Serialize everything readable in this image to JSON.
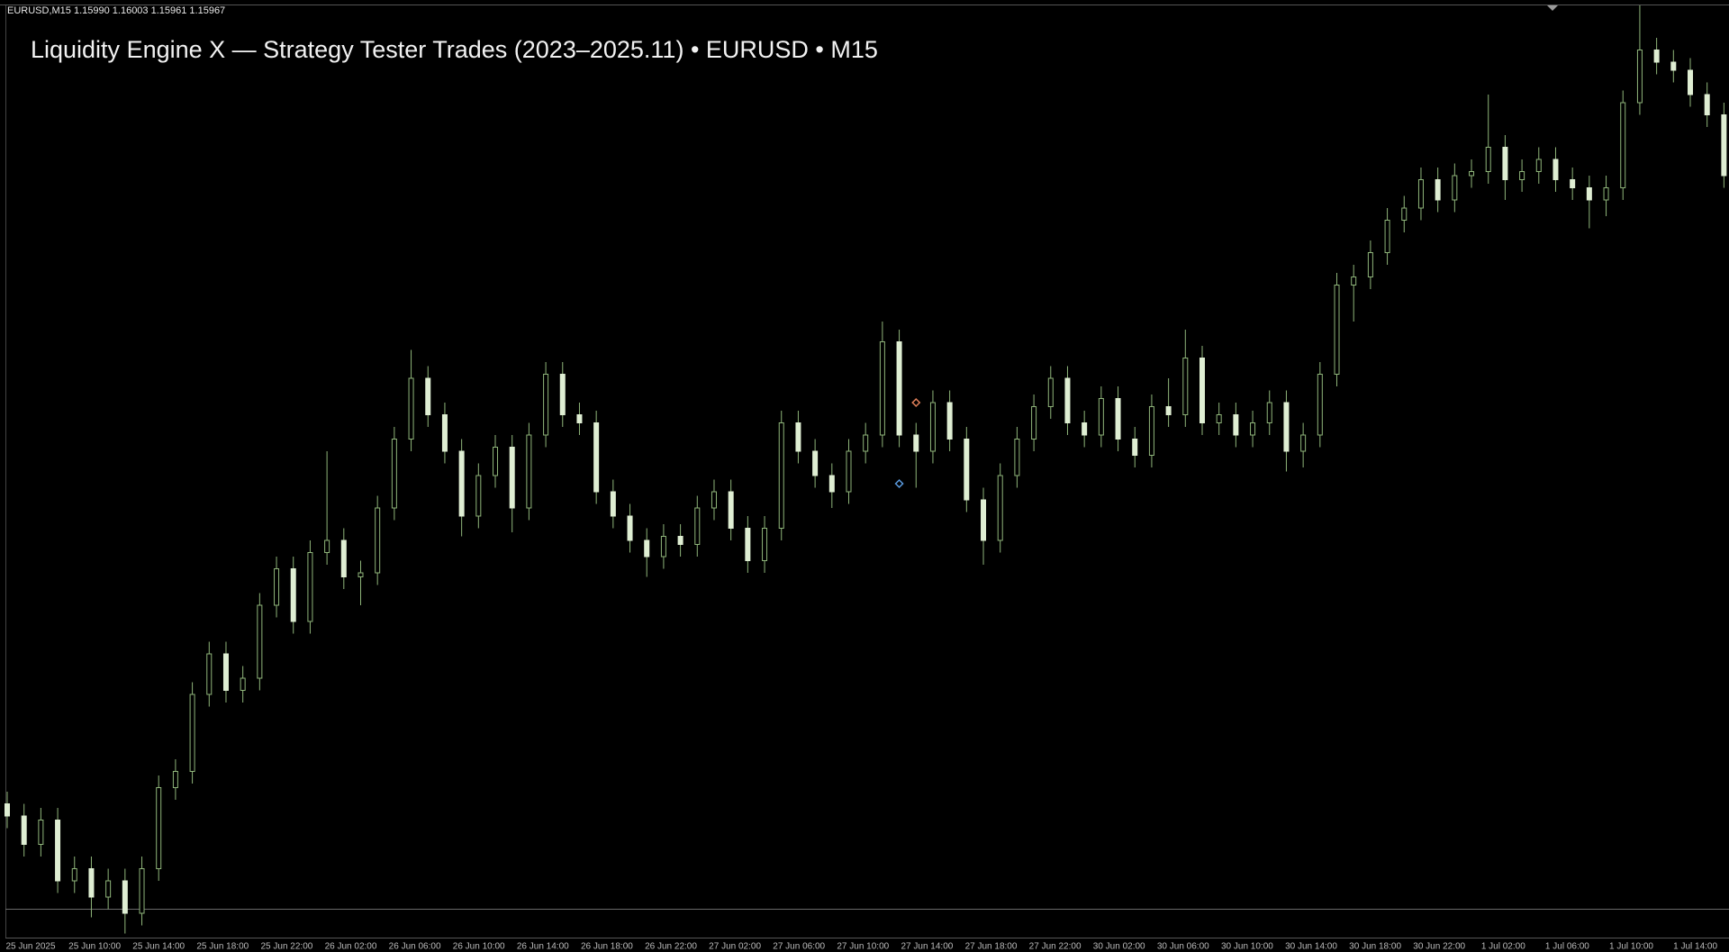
{
  "header": "EURUSD,M15  1.15990 1.16003 1.15961 1.15967",
  "chart_data": {
    "type": "candlestick",
    "title": "Liquidity Engine X — Strategy Tester Trades (2023–2025.11) • EURUSD • M15",
    "ylim": [
      1.16,
      1.183
    ],
    "bull_color": "#8fb57a",
    "bear_color": "#dfeed3",
    "price_line": 1.1607,
    "time_labels": [
      "25 Jun 2025",
      "25 Jun 10:00",
      "25 Jun 14:00",
      "25 Jun 18:00",
      "25 Jun 22:00",
      "26 Jun 02:00",
      "26 Jun 06:00",
      "26 Jun 10:00",
      "26 Jun 14:00",
      "26 Jun 18:00",
      "26 Jun 22:00",
      "27 Jun 02:00",
      "27 Jun 06:00",
      "27 Jun 10:00",
      "27 Jun 14:00",
      "27 Jun 18:00",
      "27 Jun 22:00",
      "30 Jun 02:00",
      "30 Jun 06:00",
      "30 Jun 10:00",
      "30 Jun 14:00",
      "30 Jun 18:00",
      "30 Jun 22:00",
      "1 Jul 02:00",
      "1 Jul 06:00",
      "1 Jul 10:00",
      "1 Jul 14:00"
    ],
    "open": [
      1.1633,
      1.163,
      1.1623,
      1.1629,
      1.1614,
      1.1617,
      1.161,
      1.1614,
      1.1606,
      1.1617,
      1.1637,
      1.1641,
      1.166,
      1.167,
      1.1661,
      1.1664,
      1.1682,
      1.1691,
      1.1678,
      1.1695,
      1.1698,
      1.1689,
      1.169,
      1.1706,
      1.1723,
      1.1738,
      1.1729,
      1.172,
      1.1704,
      1.1714,
      1.1721,
      1.1706,
      1.1724,
      1.1739,
      1.1729,
      1.1727,
      1.171,
      1.1704,
      1.1698,
      1.1694,
      1.1699,
      1.1697,
      1.1706,
      1.171,
      1.1701,
      1.1693,
      1.1701,
      1.1727,
      1.172,
      1.1714,
      1.171,
      1.172,
      1.1724,
      1.1747,
      1.1724,
      1.172,
      1.1732,
      1.1723,
      1.1708,
      1.1698,
      1.1714,
      1.1723,
      1.1731,
      1.1738,
      1.1727,
      1.1724,
      1.1733,
      1.1723,
      1.1719,
      1.1731,
      1.1729,
      1.1743,
      1.1727,
      1.1729,
      1.1724,
      1.1727,
      1.1732,
      1.172,
      1.1724,
      1.1739,
      1.1761,
      1.1763,
      1.1769,
      1.1777,
      1.178,
      1.1787,
      1.1782,
      1.1788,
      1.1789,
      1.1795,
      1.1787,
      1.1789,
      1.1792,
      1.1787,
      1.1785,
      1.1782,
      1.1785,
      1.1806,
      1.1819,
      1.1816,
      1.1814,
      1.1808,
      1.1803
    ],
    "high": [
      1.1636,
      1.1633,
      1.1632,
      1.1632,
      1.162,
      1.162,
      1.1617,
      1.1617,
      1.162,
      1.164,
      1.1644,
      1.1663,
      1.1673,
      1.1673,
      1.1667,
      1.1685,
      1.1694,
      1.1694,
      1.1698,
      1.172,
      1.1701,
      1.1693,
      1.1709,
      1.1726,
      1.1745,
      1.1741,
      1.1732,
      1.1723,
      1.1717,
      1.1724,
      1.1724,
      1.1727,
      1.1742,
      1.1742,
      1.1732,
      1.173,
      1.1713,
      1.1707,
      1.1701,
      1.1702,
      1.1702,
      1.1709,
      1.1713,
      1.1713,
      1.1704,
      1.1704,
      1.173,
      1.173,
      1.1723,
      1.1717,
      1.1723,
      1.1727,
      1.1752,
      1.175,
      1.1727,
      1.1735,
      1.1735,
      1.1726,
      1.1711,
      1.1717,
      1.1726,
      1.1734,
      1.1741,
      1.1741,
      1.173,
      1.1736,
      1.1736,
      1.1726,
      1.1734,
      1.1738,
      1.175,
      1.1746,
      1.1732,
      1.1732,
      1.173,
      1.1735,
      1.1735,
      1.1727,
      1.1742,
      1.1764,
      1.1766,
      1.1772,
      1.178,
      1.1783,
      1.179,
      1.179,
      1.1791,
      1.1792,
      1.1808,
      1.1798,
      1.1792,
      1.1795,
      1.1795,
      1.179,
      1.1788,
      1.1788,
      1.1809,
      1.183,
      1.1822,
      1.1819,
      1.1817,
      1.1811,
      1.1806
    ],
    "low": [
      1.1627,
      1.162,
      1.162,
      1.1611,
      1.1611,
      1.1605,
      1.1607,
      1.1601,
      1.1603,
      1.1614,
      1.1634,
      1.1638,
      1.1657,
      1.1658,
      1.1658,
      1.1661,
      1.1679,
      1.1675,
      1.1675,
      1.1692,
      1.1686,
      1.1682,
      1.1687,
      1.1703,
      1.172,
      1.1726,
      1.1717,
      1.1699,
      1.1701,
      1.1711,
      1.17,
      1.1703,
      1.1721,
      1.1726,
      1.1724,
      1.1707,
      1.1701,
      1.1695,
      1.1689,
      1.1691,
      1.1694,
      1.1694,
      1.1703,
      1.1698,
      1.169,
      1.169,
      1.1698,
      1.1717,
      1.1711,
      1.1706,
      1.1707,
      1.1717,
      1.1721,
      1.1721,
      1.1711,
      1.1717,
      1.172,
      1.1705,
      1.1692,
      1.1695,
      1.1711,
      1.172,
      1.1728,
      1.1724,
      1.1721,
      1.1721,
      1.172,
      1.1716,
      1.1716,
      1.1726,
      1.1726,
      1.1724,
      1.1724,
      1.1721,
      1.1721,
      1.1724,
      1.1715,
      1.1716,
      1.1721,
      1.1736,
      1.1752,
      1.176,
      1.1766,
      1.1774,
      1.1777,
      1.1779,
      1.1779,
      1.1785,
      1.1786,
      1.1782,
      1.1784,
      1.1786,
      1.1784,
      1.1782,
      1.1775,
      1.1778,
      1.1782,
      1.1803,
      1.1813,
      1.1811,
      1.1805,
      1.18,
      1.1785
    ],
    "close": [
      1.163,
      1.1623,
      1.1629,
      1.1614,
      1.1617,
      1.161,
      1.1614,
      1.1606,
      1.1617,
      1.1637,
      1.1641,
      1.166,
      1.167,
      1.1661,
      1.1664,
      1.1682,
      1.1691,
      1.1678,
      1.1695,
      1.1698,
      1.1689,
      1.169,
      1.1706,
      1.1723,
      1.1738,
      1.1729,
      1.172,
      1.1704,
      1.1714,
      1.1721,
      1.1706,
      1.1724,
      1.1739,
      1.1729,
      1.1727,
      1.171,
      1.1704,
      1.1698,
      1.1694,
      1.1699,
      1.1697,
      1.1706,
      1.171,
      1.1701,
      1.1693,
      1.1701,
      1.1727,
      1.172,
      1.1714,
      1.171,
      1.172,
      1.1724,
      1.1747,
      1.1724,
      1.172,
      1.1732,
      1.1723,
      1.1708,
      1.1698,
      1.1714,
      1.1723,
      1.1731,
      1.1738,
      1.1727,
      1.1724,
      1.1733,
      1.1723,
      1.1719,
      1.1731,
      1.1729,
      1.1743,
      1.1727,
      1.1729,
      1.1724,
      1.1727,
      1.1732,
      1.172,
      1.1724,
      1.1739,
      1.1761,
      1.1763,
      1.1769,
      1.1777,
      1.178,
      1.1787,
      1.1782,
      1.1788,
      1.1789,
      1.1795,
      1.1787,
      1.1789,
      1.1792,
      1.1787,
      1.1785,
      1.1782,
      1.1785,
      1.1806,
      1.1819,
      1.1816,
      1.1814,
      1.1808,
      1.1803,
      1.1788
    ],
    "trades": [
      {
        "candle": 54,
        "price": 1.1732,
        "color": "#e0805a"
      },
      {
        "candle": 53,
        "price": 1.1712,
        "color": "#5a9be0"
      }
    ]
  }
}
